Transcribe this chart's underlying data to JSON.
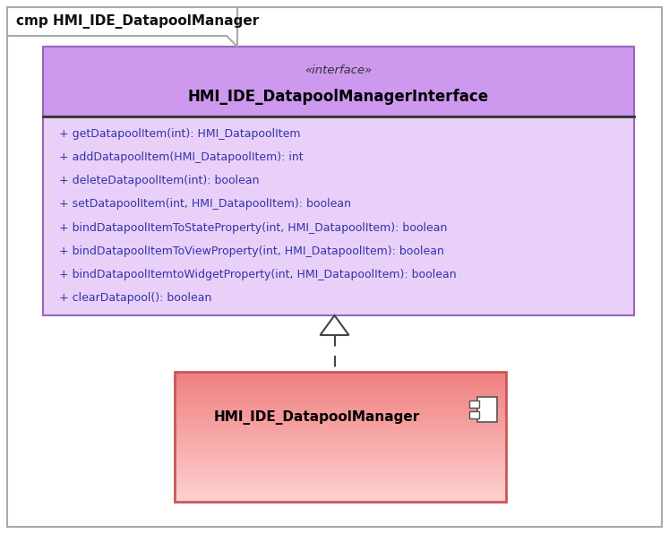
{
  "title": "cmp HMI_IDE_DatapoolManager",
  "outer_bg": "#ffffff",
  "frame_bg": "#ffffff",
  "frame_border": "#aaaaaa",
  "interface_box": {
    "header_bg": "#cc99ee",
    "body_bg": "#e8d0f8",
    "border_color": "#9966bb",
    "stereotype": "«interface»",
    "name": "HMI_IDE_DatapoolManagerInterface",
    "methods": [
      "+ getDatapoolItem(int): HMI_DatapoolItem",
      "+ addDatapoolItem(HMI_DatapoolItem): int",
      "+ deleteDatapoolItem(int): boolean",
      "+ setDatapoolItem(int, HMI_DatapoolItem): boolean",
      "+ bindDatapoolItemToStateProperty(int, HMI_DatapoolItem): boolean",
      "+ bindDatapoolItemToViewProperty(int, HMI_DatapoolItem): boolean",
      "+ bindDatapoolItemtoWidgetProperty(int, HMI_DatapoolItem): boolean",
      "+ clearDatapool(): boolean"
    ],
    "method_color": "#3333aa"
  },
  "component_box": {
    "color_top": "#f08080",
    "color_bottom": "#ffd0d0",
    "border_color": "#cc5555",
    "name": "HMI_IDE_DatapoolManager"
  },
  "arrow_color": "#444444",
  "divider_color": "#333333"
}
